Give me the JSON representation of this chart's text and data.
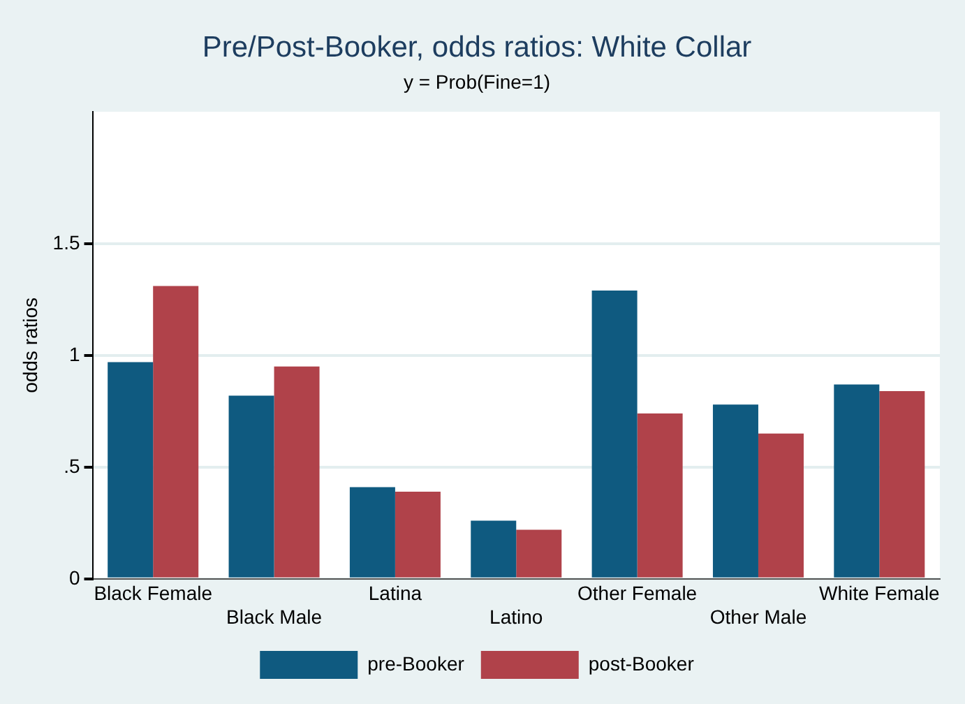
{
  "chart_data": {
    "type": "bar",
    "title": "Pre/Post-Booker, odds ratios: White Collar",
    "subtitle": "y = Prob(Fine=1)",
    "ylabel": "odds ratios",
    "categories": [
      "Black Female",
      "Black Male",
      "Latina",
      "Latino",
      "Other Female",
      "Other Male",
      "White Female"
    ],
    "series": [
      {
        "name": "pre-Booker",
        "color": "#0f5a80",
        "values": [
          0.97,
          0.82,
          0.41,
          0.26,
          1.29,
          0.78,
          0.87
        ]
      },
      {
        "name": "post-Booker",
        "color": "#b0424a",
        "values": [
          1.31,
          0.95,
          0.39,
          0.22,
          0.74,
          0.65,
          0.84
        ]
      }
    ],
    "ylim": [
      0,
      2.09
    ],
    "yticks": [
      0,
      {
        "value": 0.5,
        "label": ".5"
      },
      1,
      1.5
    ],
    "grid": "y",
    "legend": "bottom"
  }
}
